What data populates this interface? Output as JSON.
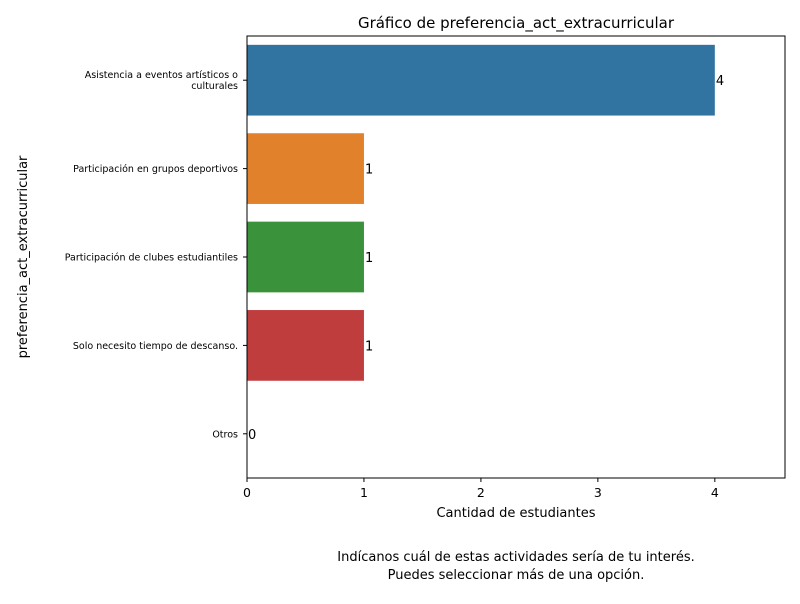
{
  "chart_data": {
    "type": "bar",
    "orientation": "horizontal",
    "title": "Gráfico de preferencia_act_extracurricular",
    "xlabel": "Cantidad de estudiantes",
    "ylabel": "preferencia_act_extracurricular",
    "categories": [
      [
        "Asistencia a eventos artísticos o",
        "culturales"
      ],
      [
        "Participación en grupos deportivos"
      ],
      [
        "Participación de clubes estudiantiles"
      ],
      [
        "Solo necesito tiempo de descanso."
      ],
      [
        "Otros"
      ]
    ],
    "values": [
      4,
      1,
      1,
      1,
      0
    ],
    "data_labels": [
      "4",
      "1",
      "1",
      "1",
      "0"
    ],
    "colors": [
      "#3274a1",
      "#e1812c",
      "#3a923a",
      "#c03d3e",
      "#9372b2"
    ],
    "xlim": [
      0,
      4.6
    ],
    "xticks": [
      0,
      1,
      2,
      3,
      4
    ],
    "xtick_labels": [
      "0",
      "1",
      "2",
      "3",
      "4"
    ],
    "grid": false,
    "legend": "none"
  },
  "caption": {
    "line1": "Indícanos cuál de estas actividades sería de tu interés.",
    "line2": "Puedes seleccionar más de una opción."
  }
}
